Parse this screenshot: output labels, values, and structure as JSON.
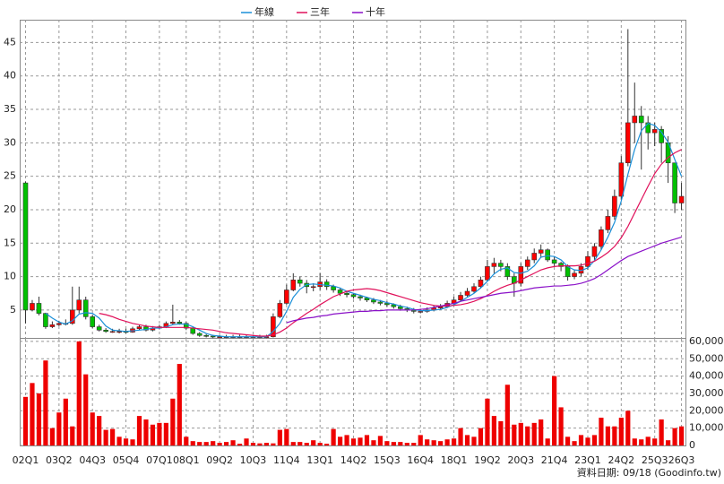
{
  "chart_data": [
    {
      "type": "candlestick",
      "ylim": [
        0.7,
        48.4
      ],
      "yticks": [
        5,
        10,
        15,
        20,
        25,
        30,
        35,
        40,
        45
      ],
      "grid": true,
      "up_color": "#ff0000",
      "down_color": "#00c000",
      "legend": "top",
      "open": [
        24,
        5,
        6,
        4.5,
        2.5,
        2.8,
        3,
        3,
        5,
        6.5,
        4,
        2.5,
        2,
        1.8,
        1.8,
        1.8,
        1.7,
        2.2,
        2.5,
        2,
        2.3,
        2.5,
        3,
        3.2,
        3,
        2.3,
        1.5,
        1.2,
        1.1,
        1,
        1,
        1,
        1,
        1,
        1,
        1,
        1,
        1,
        4,
        6,
        8,
        9.5,
        9,
        8.5,
        8.5,
        9.2,
        8.5,
        8,
        7.5,
        7.3,
        7,
        6.8,
        6.5,
        6.2,
        6,
        5.8,
        5.5,
        5.2,
        5,
        4.8,
        4.8,
        5,
        5.3,
        5.5,
        6,
        6.5,
        7.2,
        7.8,
        8.5,
        9.5,
        11.5,
        12,
        11.5,
        10,
        9,
        11.5,
        12.5,
        13.5,
        14,
        12.5,
        12,
        11.5,
        10,
        10.5,
        11.5,
        13,
        14.5,
        17,
        19,
        22,
        27,
        33,
        34,
        33,
        31.5,
        32,
        30,
        27,
        21
      ],
      "high": [
        24.2,
        6.5,
        7,
        4.6,
        3.3,
        3.4,
        3.6,
        8.5,
        8.5,
        7,
        4.3,
        2.8,
        2.3,
        2.2,
        2.2,
        2.2,
        2.5,
        2.8,
        2.8,
        2.6,
        2.8,
        3.3,
        5.8,
        3.5,
        3.2,
        2.5,
        1.7,
        1.4,
        1.3,
        1.3,
        1.3,
        1.3,
        1.3,
        1.3,
        1.3,
        1.3,
        1.3,
        4.5,
        6.5,
        8.8,
        10.5,
        10,
        9.5,
        9,
        10.5,
        9.6,
        8.8,
        8.3,
        7.8,
        7.5,
        7.3,
        7,
        6.8,
        6.5,
        6.3,
        6,
        5.8,
        5.5,
        5.3,
        5.2,
        5.4,
        5.7,
        5.9,
        6.4,
        7,
        7.7,
        8.3,
        9,
        10,
        12.5,
        12.8,
        12.5,
        12,
        10.5,
        12,
        13,
        14.2,
        14.8,
        14.2,
        13,
        12.2,
        11.8,
        11,
        12,
        13.8,
        15,
        17.5,
        20,
        23,
        28,
        47,
        39,
        35.5,
        34,
        33,
        32.5,
        31,
        27,
        24
      ],
      "low": [
        3,
        4.8,
        4.2,
        2.2,
        2.3,
        2.6,
        2.7,
        2.8,
        4.5,
        3.6,
        2.3,
        1.8,
        1.6,
        1.6,
        1.5,
        1.5,
        1.6,
        2,
        1.8,
        1.8,
        2.1,
        2.3,
        2.8,
        2.8,
        2,
        1.3,
        1,
        0.9,
        0.8,
        0.8,
        0.8,
        0.8,
        0.8,
        0.8,
        0.8,
        0.8,
        0.8,
        0.9,
        3.8,
        5.8,
        7.8,
        8.5,
        7.5,
        7.8,
        8,
        8,
        7.6,
        7.1,
        6.9,
        6.7,
        6.4,
        6.2,
        5.9,
        5.7,
        5.5,
        5.2,
        4.9,
        4.7,
        4.5,
        4.5,
        4.6,
        4.8,
        5.1,
        5.3,
        5.8,
        6.3,
        7,
        7.6,
        8.2,
        9.3,
        10.5,
        10.8,
        9.5,
        7,
        8.5,
        11,
        12,
        12.8,
        12.2,
        11.5,
        10.8,
        9.4,
        9.6,
        10,
        11,
        12.5,
        14,
        16.5,
        18.5,
        21.5,
        26.5,
        30,
        26,
        29,
        29.5,
        27,
        24,
        19.5,
        20
      ],
      "close": [
        5,
        6,
        4.5,
        2.5,
        2.8,
        3,
        3,
        5,
        6.5,
        4,
        2.5,
        2,
        1.8,
        1.8,
        1.8,
        1.7,
        2.2,
        2.5,
        2,
        2.3,
        2.5,
        3,
        3.2,
        3,
        2.3,
        1.5,
        1.2,
        1.1,
        1,
        1,
        1,
        1,
        1,
        1,
        1,
        1,
        1,
        4,
        6,
        8,
        9.5,
        9,
        8.5,
        8.5,
        9.2,
        8.5,
        8,
        7.5,
        7.3,
        7,
        6.8,
        6.5,
        6.2,
        6,
        5.8,
        5.5,
        5.2,
        5,
        4.8,
        4.8,
        5,
        5.3,
        5.5,
        6,
        6.5,
        7.2,
        7.8,
        8.5,
        9.5,
        11.5,
        12,
        11.5,
        10,
        9,
        11.5,
        12.5,
        13.5,
        14,
        12.5,
        12,
        11.5,
        10,
        10.5,
        11.5,
        13,
        14.5,
        17,
        19,
        22,
        27,
        33,
        34,
        33,
        31.5,
        32,
        30,
        27,
        21,
        22
      ],
      "series": [
        {
          "name": "年線",
          "color": "#1a8fd8",
          "values": [
            null,
            null,
            null,
            4.5,
            3.8,
            3.2,
            2.9,
            3.4,
            4.4,
            4.6,
            4.5,
            3.8,
            2.6,
            2,
            1.9,
            1.8,
            1.9,
            2,
            2.1,
            2.3,
            2.3,
            2.5,
            2.8,
            2.9,
            2.9,
            2.5,
            2,
            1.5,
            1.2,
            1.1,
            1,
            1,
            1,
            1,
            1,
            1,
            1,
            1.8,
            3,
            4.8,
            6.9,
            8.1,
            8.8,
            8.9,
            8.8,
            8.7,
            8.6,
            8.3,
            7.8,
            7.5,
            7.2,
            6.9,
            6.6,
            6.4,
            6.1,
            5.9,
            5.6,
            5.4,
            5.1,
            4.9,
            4.9,
            5,
            5.1,
            5.4,
            5.8,
            6.3,
            6.9,
            7.5,
            8.3,
            9.3,
            10.4,
            11.1,
            11.3,
            10.6,
            10.5,
            10.8,
            11.6,
            12.9,
            13.1,
            13,
            12.5,
            11.5,
            11,
            10.9,
            11.3,
            12.4,
            14,
            15.9,
            18.1,
            21.3,
            25.3,
            29,
            31.8,
            32.9,
            32.6,
            31.6,
            30.1,
            27.5,
            25
          ]
        },
        {
          "name": "三年",
          "color": "#e0105a",
          "values": [
            null,
            null,
            null,
            null,
            null,
            null,
            null,
            null,
            null,
            null,
            null,
            4.5,
            4.3,
            4,
            3.6,
            3.3,
            3,
            2.8,
            2.6,
            2.5,
            2.4,
            2.4,
            2.4,
            2.4,
            2.4,
            2.3,
            2.2,
            2.1,
            2,
            1.8,
            1.6,
            1.5,
            1.4,
            1.3,
            1.2,
            1.1,
            1.1,
            1.3,
            1.7,
            2.3,
            3.1,
            3.8,
            4.5,
            5.1,
            5.8,
            6.4,
            7,
            7.4,
            7.8,
            8,
            8.1,
            8.2,
            8.1,
            7.9,
            7.6,
            7.3,
            7,
            6.7,
            6.4,
            6.1,
            5.9,
            5.7,
            5.6,
            5.6,
            5.7,
            5.8,
            6,
            6.3,
            6.7,
            7.2,
            7.8,
            8.3,
            8.7,
            9,
            9.5,
            10,
            10.5,
            11,
            11.3,
            11.5,
            11.6,
            11.6,
            11.6,
            11.7,
            12,
            12.3,
            12.9,
            13.6,
            14.5,
            15.8,
            17.5,
            19.5,
            21.5,
            23.5,
            25.4,
            26.8,
            27.8,
            28.5,
            29
          ]
        },
        {
          "name": "十年",
          "color": "#8a10c8",
          "values": [
            null,
            null,
            null,
            null,
            null,
            null,
            null,
            null,
            null,
            null,
            null,
            null,
            null,
            null,
            null,
            null,
            null,
            null,
            null,
            null,
            null,
            null,
            null,
            null,
            null,
            null,
            null,
            null,
            null,
            null,
            null,
            null,
            null,
            null,
            null,
            null,
            null,
            null,
            null,
            3.1,
            3.4,
            3.6,
            3.8,
            3.9,
            4.1,
            4.2,
            4.4,
            4.5,
            4.6,
            4.7,
            4.8,
            4.8,
            4.9,
            4.9,
            5,
            5,
            5,
            5,
            5,
            5.1,
            5.2,
            5.4,
            5.6,
            5.8,
            6,
            6.3,
            6.5,
            6.7,
            6.9,
            7.1,
            7.3,
            7.5,
            7.6,
            7.7,
            7.9,
            8.1,
            8.3,
            8.4,
            8.5,
            8.6,
            8.6,
            8.7,
            8.8,
            9,
            9.3,
            9.7,
            10.3,
            11,
            11.7,
            12.4,
            13,
            13.4,
            13.8,
            14.2,
            14.6,
            15,
            15.3,
            15.6,
            15.9
          ]
        }
      ]
    },
    {
      "type": "bar",
      "color": "#ee0000",
      "grid": true,
      "ylim": [
        0,
        61500
      ],
      "yticks": [
        0,
        {
          "value": 10000,
          "label": "10,000"
        },
        {
          "value": 20000,
          "label": "20,000"
        },
        {
          "value": 30000,
          "label": "30,000"
        },
        {
          "value": 40000,
          "label": "40,000"
        },
        {
          "value": 50000,
          "label": "50,000"
        },
        {
          "value": 60000,
          "label": "60,000"
        }
      ],
      "categories": [
        "02Q1",
        null,
        null,
        null,
        null,
        "03Q2",
        null,
        null,
        null,
        null,
        "04Q3",
        null,
        null,
        null,
        null,
        "05Q4",
        null,
        null,
        null,
        null,
        "07Q1",
        null,
        null,
        null,
        "08Q1",
        null,
        null,
        null,
        null,
        "09Q2",
        null,
        null,
        null,
        null,
        "10Q3",
        null,
        null,
        null,
        null,
        "11Q4",
        null,
        null,
        null,
        null,
        "13Q1",
        null,
        null,
        null,
        null,
        "14Q2",
        null,
        null,
        null,
        null,
        "15Q3",
        null,
        null,
        null,
        null,
        "16Q4",
        null,
        null,
        null,
        null,
        "18Q1",
        null,
        null,
        null,
        null,
        "19Q2",
        null,
        null,
        null,
        null,
        "20Q3",
        null,
        null,
        null,
        null,
        "21Q4",
        null,
        null,
        null,
        null,
        "23Q1",
        null,
        null,
        null,
        null,
        "24Q2",
        null,
        null,
        null,
        null,
        "25Q3",
        null,
        null,
        null,
        "26Q3"
      ],
      "values": [
        28000,
        36000,
        30000,
        49000,
        10000,
        19000,
        27000,
        11000,
        60000,
        41000,
        19000,
        17000,
        9000,
        9500,
        5000,
        4000,
        3500,
        17000,
        15000,
        12000,
        13000,
        13000,
        27000,
        47000,
        5000,
        2500,
        2000,
        2000,
        2500,
        1500,
        2000,
        3000,
        1000,
        4000,
        1500,
        1200,
        1500,
        1200,
        9000,
        9500,
        2000,
        2000,
        1500,
        3000,
        1500,
        1000,
        9500,
        5000,
        6000,
        4000,
        4500,
        6000,
        3000,
        5500,
        2500,
        2000,
        2000,
        1500,
        1500,
        6000,
        3500,
        3000,
        2500,
        3500,
        4000,
        10000,
        6000,
        5000,
        10000,
        27000,
        17000,
        14000,
        35000,
        12000,
        13000,
        11000,
        13000,
        15000,
        4000,
        40000,
        22000,
        5000,
        2500,
        6000,
        4500,
        6000,
        16000,
        11000,
        11000,
        16000,
        20000,
        4000,
        3500,
        5000,
        4000,
        15000,
        3000,
        10000,
        11000
      ],
      "note": "資料日期: 09/18 (Goodinfo.tw)"
    }
  ]
}
